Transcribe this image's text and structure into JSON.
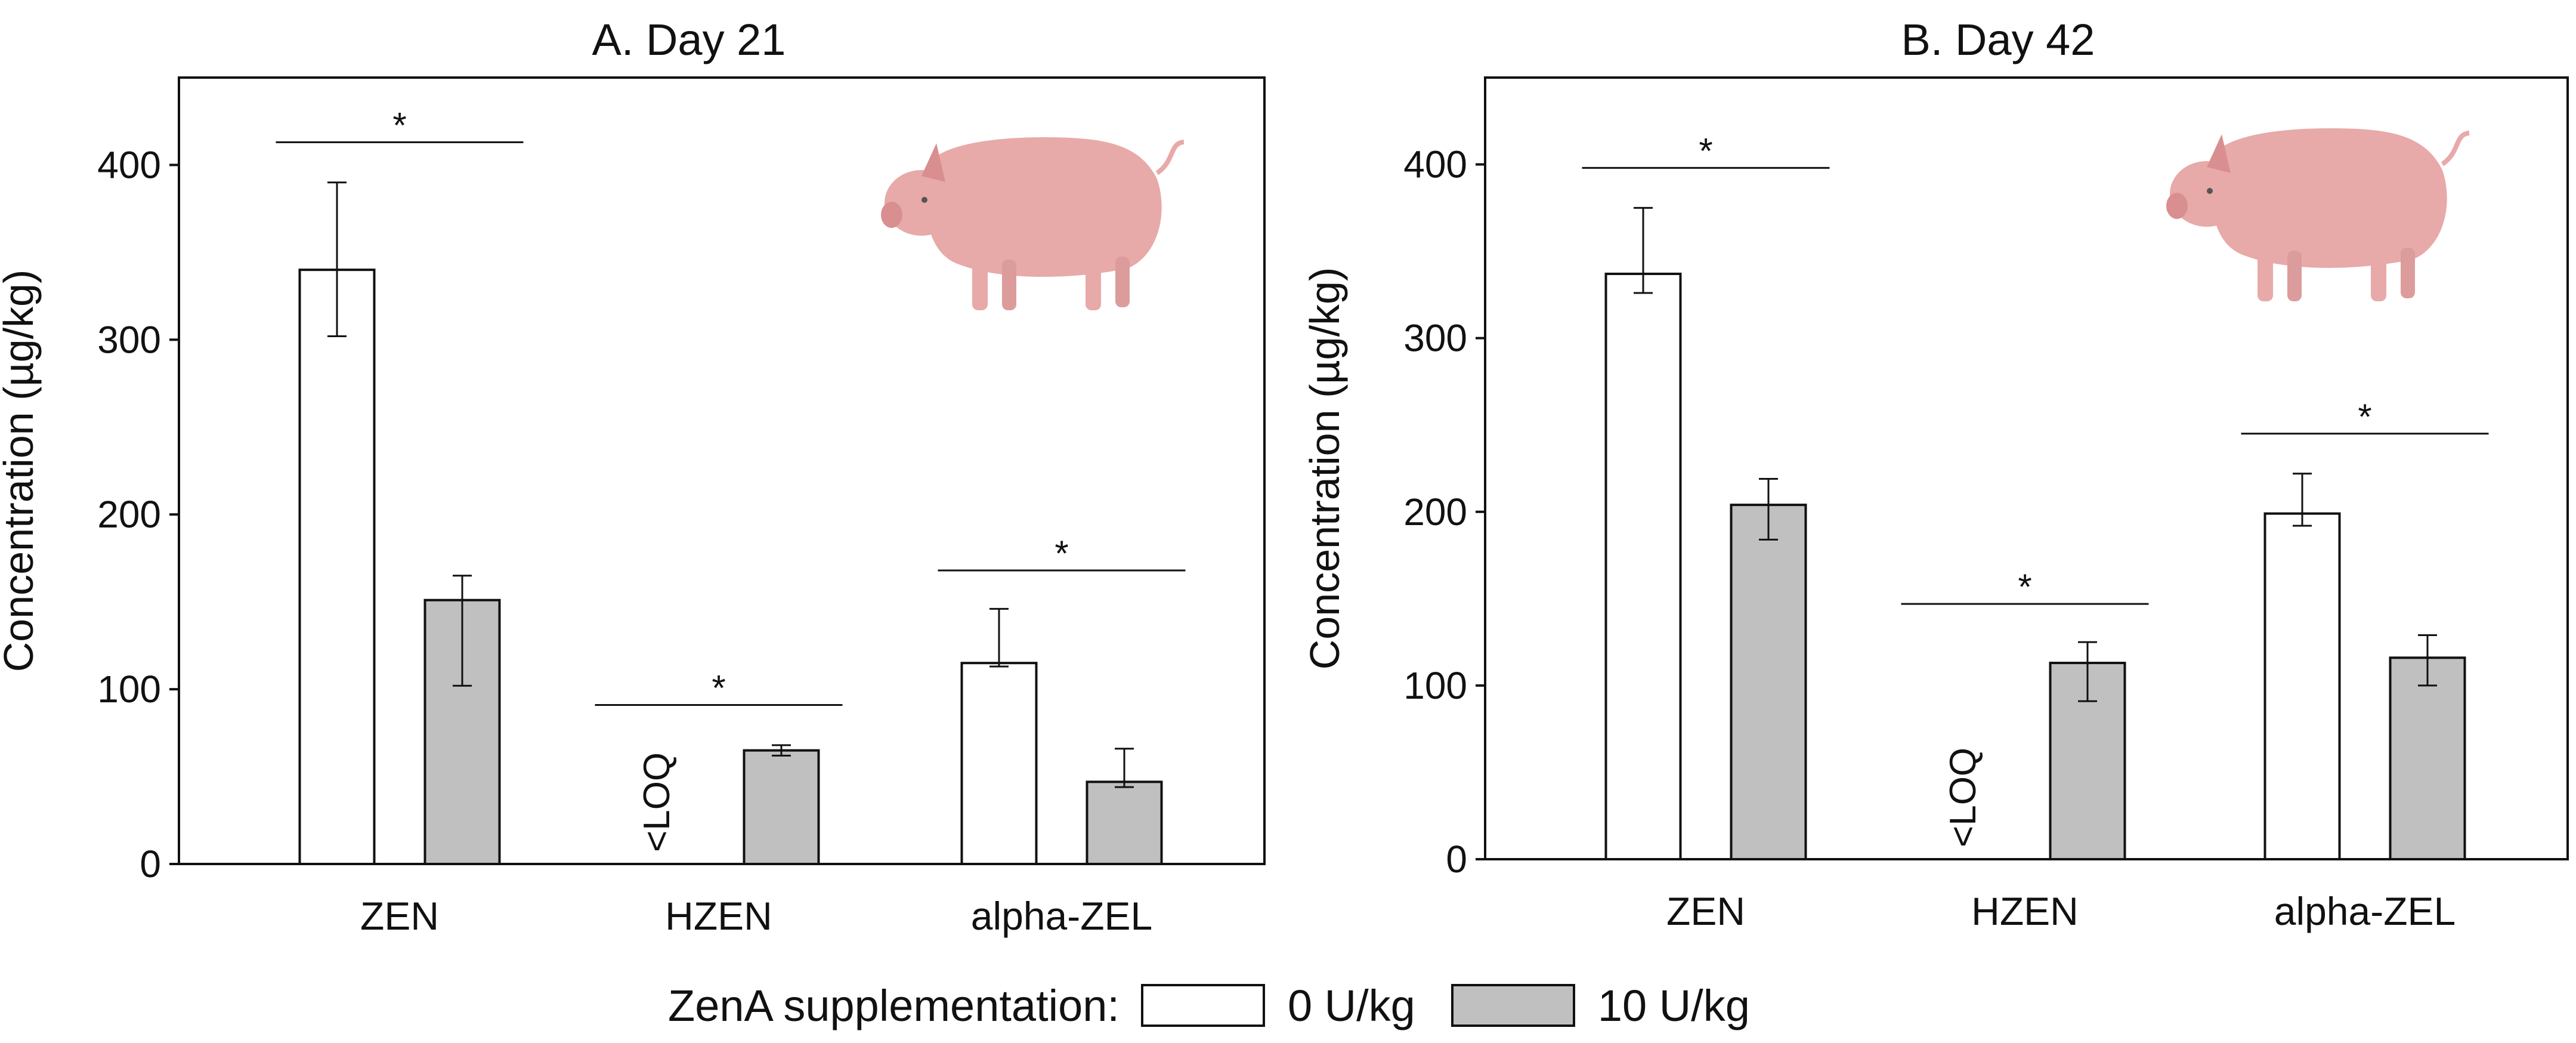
{
  "legend": {
    "title": "ZenA supplementation:",
    "items": [
      {
        "label": "0 U/kg",
        "color": "#ffffff"
      },
      {
        "label": "10 U/kg",
        "color": "#c0c0c0"
      }
    ]
  },
  "colors": {
    "control": "#ffffff",
    "treatment": "#c0c0c0",
    "axis": "#111111",
    "pig": "#e8a9a9"
  },
  "chart_data": [
    {
      "type": "bar",
      "title": "A. Day 21",
      "ylabel": "Concentration (µg/kg)",
      "xlabel": "",
      "ylim": [
        0,
        450
      ],
      "yticks": [
        0,
        100,
        200,
        300,
        400
      ],
      "categories": [
        "ZEN",
        "HZEN",
        "alpha-ZEL"
      ],
      "series": [
        {
          "name": "0 U/kg",
          "values": [
            340,
            null,
            115
          ],
          "err_low": [
            38,
            null,
            2
          ],
          "err_high": [
            50,
            null,
            31
          ]
        },
        {
          "name": "10 U/kg",
          "values": [
            151,
            65,
            47
          ],
          "err_low": [
            49,
            3,
            3
          ],
          "err_high": [
            14,
            3,
            19
          ]
        }
      ],
      "below_loq_label": "<LOQ",
      "significance": [
        {
          "category": "ZEN",
          "label": "*",
          "y": 413
        },
        {
          "category": "HZEN",
          "label": "*",
          "y": 91
        },
        {
          "category": "alpha-ZEL",
          "label": "*",
          "y": 168
        }
      ]
    },
    {
      "type": "bar",
      "title": "B. Day 42",
      "ylabel": "Concentration (µg/kg)",
      "xlabel": "",
      "ylim": [
        0,
        450
      ],
      "yticks": [
        0,
        100,
        200,
        300,
        400
      ],
      "categories": [
        "ZEN",
        "HZEN",
        "alpha-ZEL"
      ],
      "series": [
        {
          "name": "0 U/kg",
          "values": [
            337,
            null,
            199
          ],
          "err_low": [
            11,
            null,
            7
          ],
          "err_high": [
            38,
            null,
            23
          ]
        },
        {
          "name": "10 U/kg",
          "values": [
            204,
            113,
            116
          ],
          "err_low": [
            20,
            22,
            16
          ],
          "err_high": [
            15,
            12,
            13
          ]
        }
      ],
      "below_loq_label": "<LOQ",
      "significance": [
        {
          "category": "ZEN",
          "label": "*",
          "y": 398
        },
        {
          "category": "HZEN",
          "label": "*",
          "y": 147
        },
        {
          "category": "alpha-ZEL",
          "label": "*",
          "y": 245
        }
      ]
    }
  ]
}
